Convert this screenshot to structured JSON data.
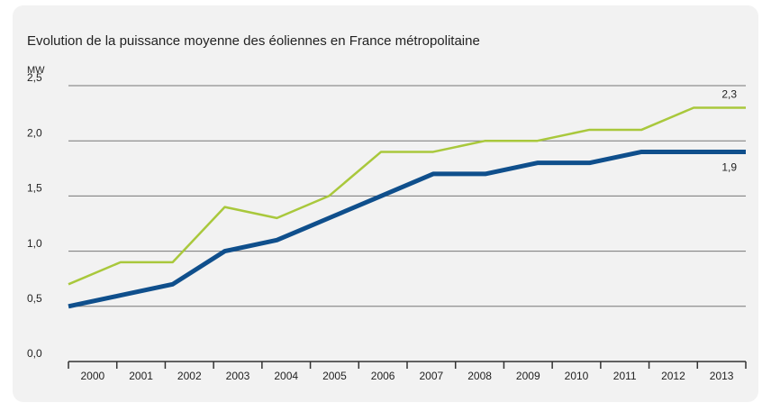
{
  "chart_data": {
    "type": "line",
    "title": "Evolution de la puissance moyenne des éoliennes en France métropolitaine",
    "y_label": "MW",
    "categories": [
      "2000",
      "2001",
      "2002",
      "2003",
      "2004",
      "2005",
      "2006",
      "2007",
      "2008",
      "2009",
      "2010",
      "2011",
      "2012",
      "2013"
    ],
    "series": [
      {
        "color": "#a9c83c",
        "values": [
          0.7,
          0.9,
          0.9,
          1.4,
          1.3,
          1.5,
          1.9,
          1.9,
          2.0,
          2.0,
          2.1,
          2.1,
          2.3,
          2.3
        ],
        "value_labels": [
          null,
          null,
          null,
          null,
          null,
          null,
          null,
          null,
          null,
          null,
          null,
          null,
          null,
          "2,3"
        ]
      },
      {
        "color": "#0f4f8c",
        "values": [
          0.5,
          0.6,
          0.7,
          1.0,
          1.1,
          1.3,
          1.5,
          1.7,
          1.7,
          1.8,
          1.8,
          1.9,
          1.9,
          1.9
        ],
        "value_labels": [
          null,
          null,
          null,
          null,
          null,
          null,
          null,
          null,
          null,
          null,
          null,
          null,
          null,
          "1,9"
        ]
      }
    ],
    "ylim": [
      0,
      2.5
    ],
    "yticks": [
      {
        "value": 0,
        "label": "0,0"
      },
      {
        "value": 0.5,
        "label": "0,5"
      },
      {
        "value": 1,
        "label": "1,0"
      },
      {
        "value": 1.5,
        "label": "1,5"
      },
      {
        "value": 2,
        "label": "2,0"
      },
      {
        "value": 2.5,
        "label": "2,5"
      }
    ],
    "grid": true
  }
}
